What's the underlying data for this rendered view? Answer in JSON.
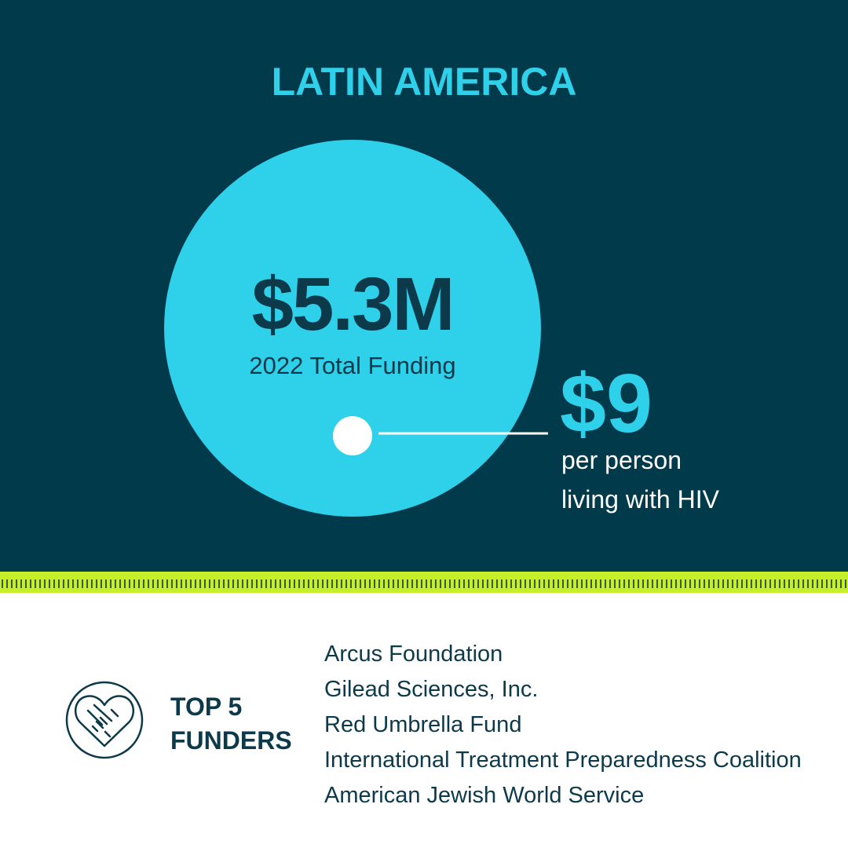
{
  "header": {
    "title": "LATIN AMERICA"
  },
  "total": {
    "amount": "$5.3M",
    "label": "2022 Total Funding"
  },
  "per_person": {
    "amount": "$9",
    "label_lines": [
      "per person",
      "living with HIV"
    ]
  },
  "funders": {
    "heading_lines": [
      "TOP 5",
      "FUNDERS"
    ],
    "list": [
      "Arcus Foundation",
      "Gilead Sciences, Inc.",
      "Red Umbrella Fund",
      "International Treatment Preparedness Coalition",
      "American Jewish World Service"
    ]
  }
}
